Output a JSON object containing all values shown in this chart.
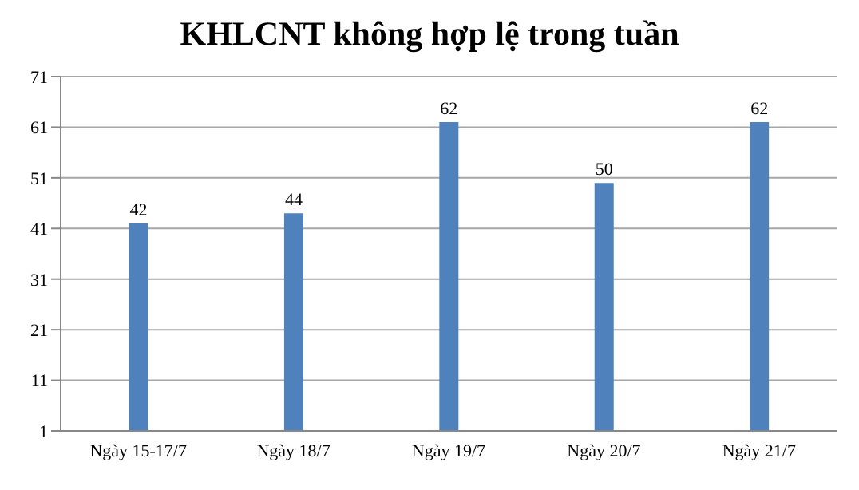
{
  "chart_data": {
    "type": "bar",
    "title": "KHLCNT không hợp lệ trong tuần",
    "categories": [
      "Ngày 15-17/7",
      "Ngày 18/7",
      "Ngày 19/7",
      "Ngày 20/7",
      "Ngày 21/7"
    ],
    "values": [
      42,
      44,
      62,
      50,
      62
    ],
    "color": "#4f81bd",
    "ylim": [
      1,
      71
    ],
    "yticks": [
      1,
      11,
      21,
      31,
      41,
      51,
      61,
      71
    ],
    "grid": "y",
    "data_labels": true
  }
}
